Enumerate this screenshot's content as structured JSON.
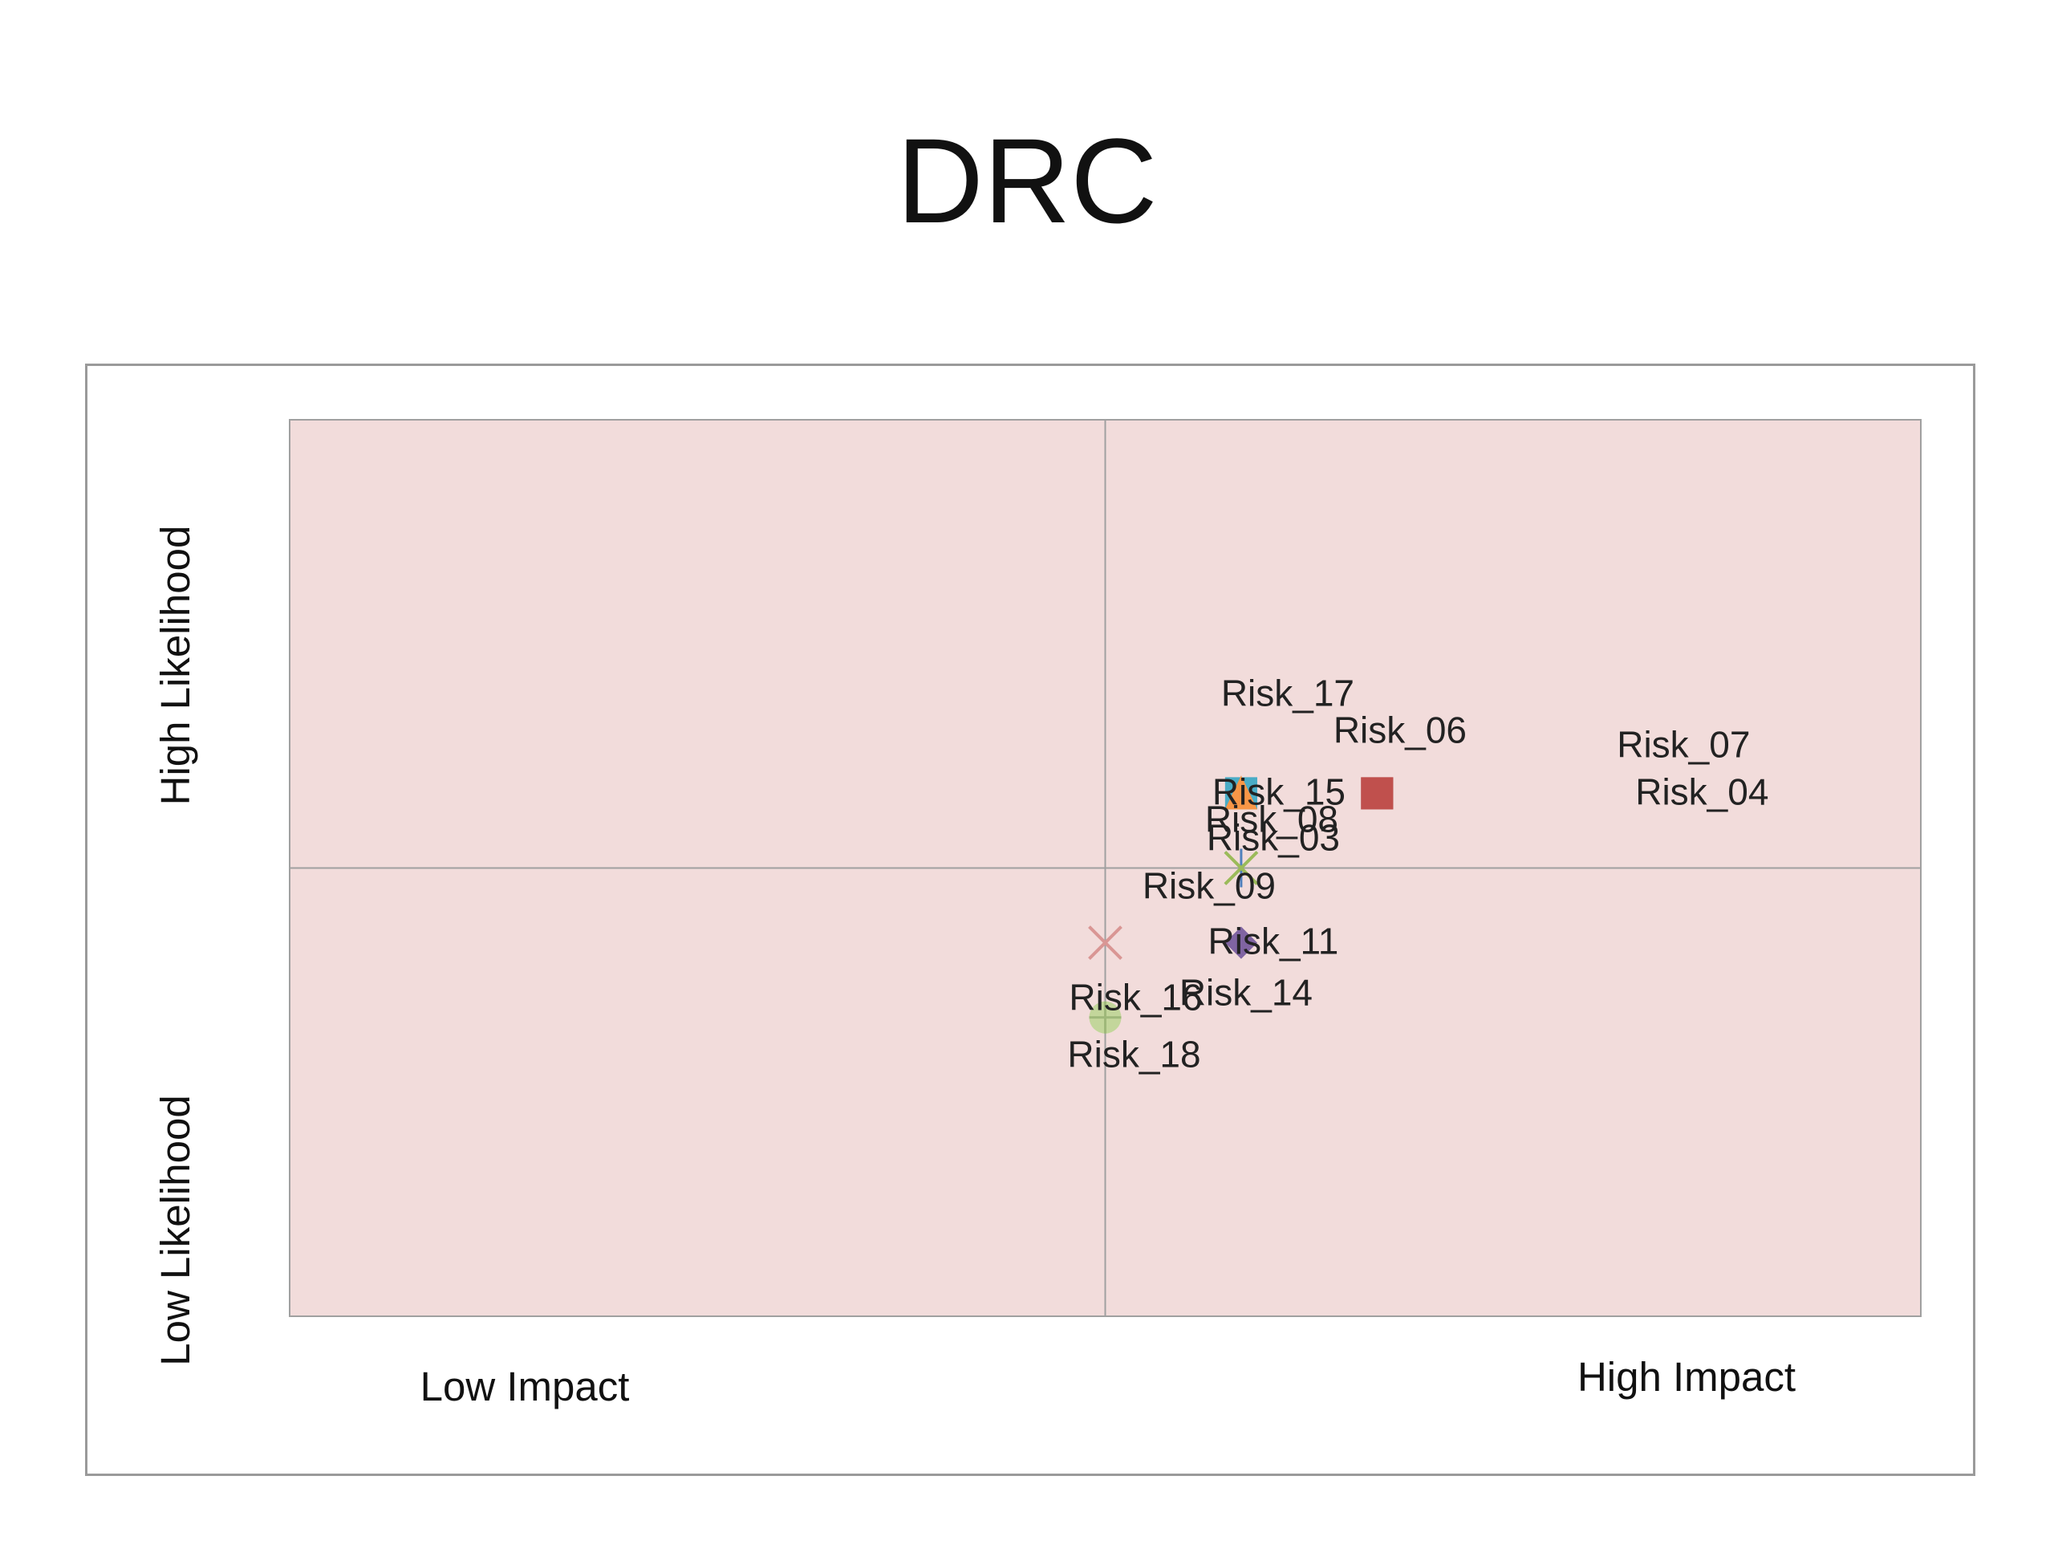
{
  "title": "DRC",
  "chart_data": {
    "type": "scatter",
    "title": "DRC",
    "xlim": [
      0,
      12
    ],
    "ylim": [
      0,
      6
    ],
    "quadrant_x": 6,
    "quadrant_y": 3,
    "plot_fill": "#f2dcdb",
    "grid_color": "#a0a0a0",
    "corner_labels": {
      "high_likelihood": "High Likelihood",
      "low_likelihood": "Low Likelihood",
      "low_impact": "Low Impact",
      "high_impact": "High Impact"
    },
    "points": [
      {
        "name": "Risk_17",
        "x": 7,
        "y": 3.5,
        "marker": "square",
        "color": "#4aacc6"
      },
      {
        "name": "Risk_06",
        "x": 7,
        "y": 3.5,
        "marker": "triangle",
        "color": "#f79646"
      },
      {
        "name": "Risk_07",
        "x": 8,
        "y": 3.5,
        "marker": "square",
        "color": "#c0504d"
      },
      {
        "name": "Risk_15",
        "x": 7,
        "y": 3.5,
        "marker": "square",
        "color": "#4aacc6"
      },
      {
        "name": "Risk_04",
        "x": 8,
        "y": 3.5,
        "marker": "square",
        "color": "#953735"
      },
      {
        "name": "Risk_08",
        "x": 7,
        "y": 3.5,
        "marker": "triangle",
        "color": "#f79646"
      },
      {
        "name": "Risk_03",
        "x": 7,
        "y": 3,
        "marker": "star",
        "color": "#4f81bd"
      },
      {
        "name": "Risk_09",
        "x": 7,
        "y": 3,
        "marker": "x",
        "color": "#9bbb59"
      },
      {
        "name": "Risk_14",
        "x": 7,
        "y": 2.5,
        "marker": "diamond",
        "color": "#8064a2"
      },
      {
        "name": "Risk_11",
        "x": 7,
        "y": 2.5,
        "marker": "diamond",
        "color": "#8064a2"
      },
      {
        "name": "Risk_16",
        "x": 6,
        "y": 2.5,
        "marker": "x",
        "color": "#d99694"
      },
      {
        "name": "Risk_18",
        "x": 6,
        "y": 2,
        "marker": "circle-plus",
        "color": "#c3d69b"
      }
    ]
  }
}
